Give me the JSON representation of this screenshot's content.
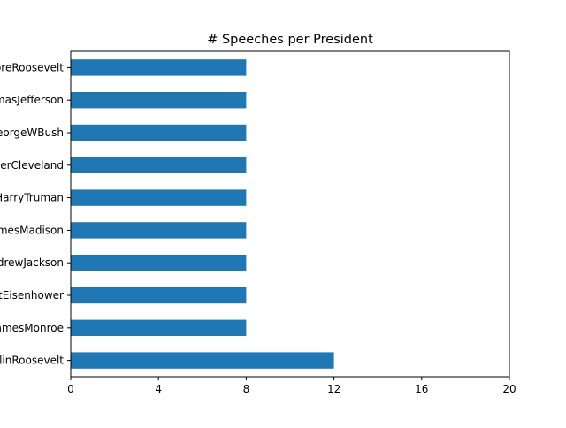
{
  "chart_data": {
    "type": "bar",
    "orientation": "horizontal",
    "title": "# Speeches per President",
    "xlabel": "",
    "ylabel": "",
    "categories": [
      "TheodoreRoosevelt",
      "ThomasJefferson",
      "GeorgeWBush",
      "GroverCleveland",
      "HarryTruman",
      "JamesMadison",
      "AndrewJackson",
      "DwightEisenhower",
      "JamesMonroe",
      "FranklinRoosevelt"
    ],
    "values": [
      8,
      8,
      8,
      8,
      8,
      8,
      8,
      8,
      8,
      12
    ],
    "xlim": [
      0,
      20
    ],
    "xticks": [
      0,
      4,
      8,
      12,
      16,
      20
    ],
    "bar_color": "#1f77b4",
    "grid": false,
    "legend": "none"
  }
}
